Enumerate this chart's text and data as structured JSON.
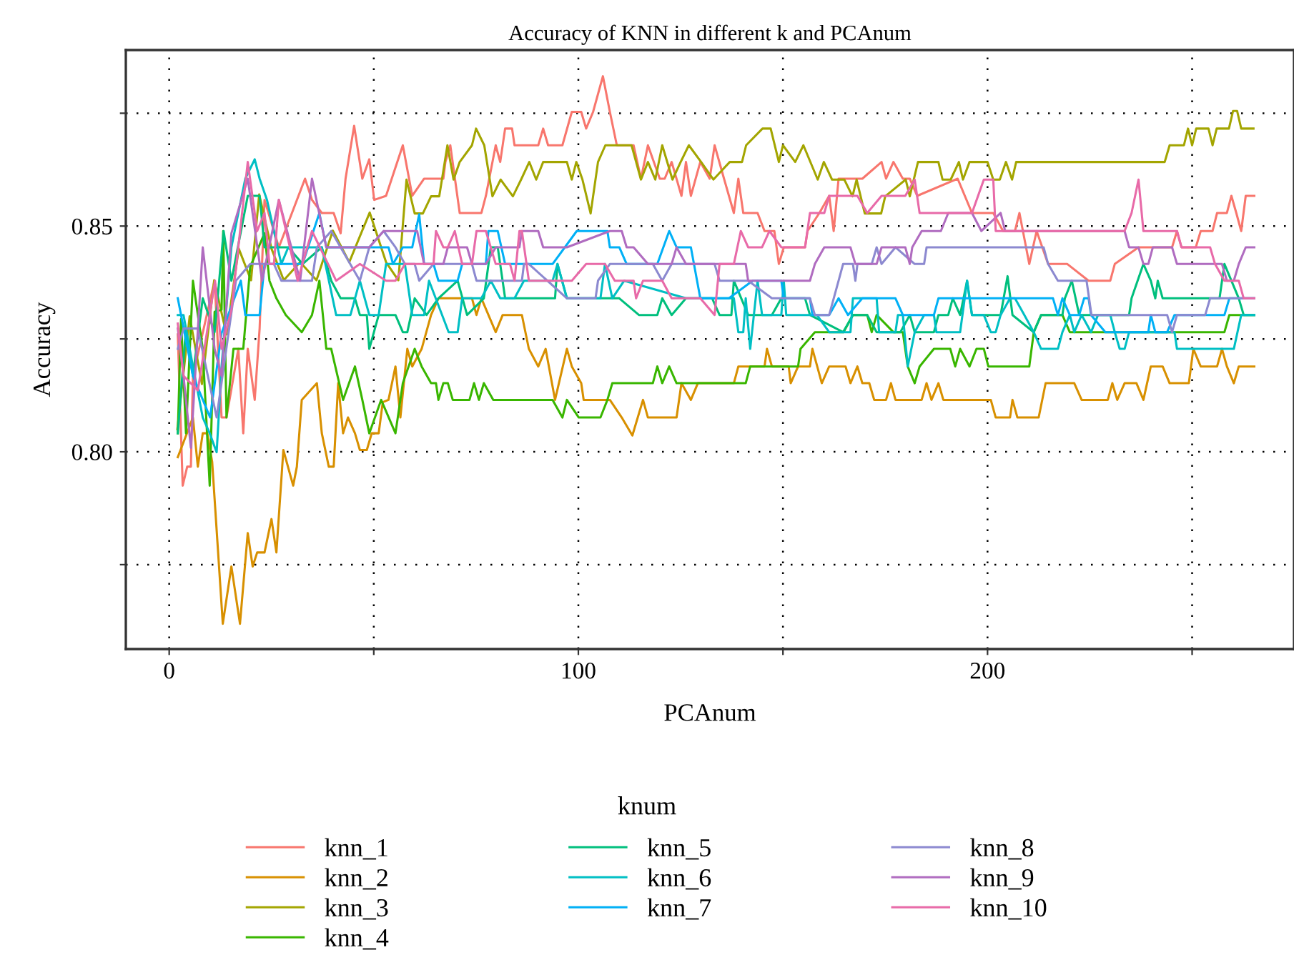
{
  "chart_data": {
    "type": "line",
    "title": "Accuracy of KNN in different k and PCAnum",
    "xlabel": "PCAnum",
    "ylabel": "Accuracy",
    "legend_title": "knum",
    "xlim": [
      -10.6,
      274.9
    ],
    "ylim": [
      0.7563,
      0.889
    ],
    "xticks": [
      0,
      {
        "value": 50,
        "label": null
      },
      100,
      {
        "value": 150,
        "label": null
      },
      200,
      {
        "value": 250,
        "label": null
      }
    ],
    "yticks": [
      {
        "value": 0.775,
        "label": null
      },
      {
        "value": 0.8,
        "label": "0.80"
      },
      {
        "value": 0.825,
        "label": null
      },
      {
        "value": 0.85,
        "label": "0.85"
      },
      {
        "value": 0.875,
        "label": null
      }
    ],
    "grid": true,
    "legend": "bottom",
    "line_style": "solid",
    "series": [
      {
        "name": "knn_1",
        "color": "#f8766d",
        "x": [
          2.1,
          3.3,
          4.4,
          5.3,
          5.8,
          11.1,
          12.8,
          14.0,
          16.9,
          18.1,
          19.2,
          20.9,
          22.1,
          23.3,
          26.8,
          33.2,
          34.9,
          37.3,
          40.2,
          41.9,
          43.1,
          45.2,
          47.2,
          48.9,
          50.1,
          53,
          57.1,
          59.4,
          62.3,
          67,
          67.5,
          68.7,
          71,
          76.3,
          77.4,
          79.8,
          80.9,
          82.1,
          83.8,
          84.4,
          90.2,
          91.4,
          92.6,
          96.1,
          98.4,
          100.7,
          101.9,
          103.6,
          106,
          107.7,
          109.4,
          113.5,
          115.3,
          117,
          119.9,
          121.1,
          122.8,
          125.2,
          126.3,
          127.5,
          129.8,
          132.1,
          133.3,
          135.6,
          138,
          139.1,
          140.3,
          143.8,
          145.5,
          147.9,
          149,
          150.2,
          155.4,
          156,
          158.9,
          161.3,
          162.4,
          163.6,
          169.4,
          174.1,
          175.2,
          177,
          179.3,
          181,
          182.8,
          192.7,
          196.2,
          201.4,
          203.8,
          206.7,
          207.8,
          210.2,
          212,
          214.8,
          219.5,
          224.7,
          230,
          231.1,
          236.9,
          245.1,
          246.3,
          247.4,
          250.9,
          252.1,
          255,
          256.1,
          258.5,
          259.6,
          260.8,
          262,
          263.1,
          265.2
        ],
        "values": [
          0.826,
          0.7925,
          0.7967,
          0.7967,
          0.8168,
          0.8379,
          0.8076,
          0.8076,
          0.8228,
          0.8041,
          0.8228,
          0.8115,
          0.8273,
          0.8558,
          0.8453,
          0.8605,
          0.8558,
          0.8529,
          0.8529,
          0.8484,
          0.8605,
          0.8722,
          0.8605,
          0.8648,
          0.8558,
          0.8567,
          0.8679,
          0.8567,
          0.8605,
          0.8605,
          0.8642,
          0.8679,
          0.8529,
          0.8529,
          0.8567,
          0.8679,
          0.8642,
          0.8716,
          0.8716,
          0.8679,
          0.8679,
          0.8716,
          0.8679,
          0.8679,
          0.8753,
          0.8753,
          0.8716,
          0.8753,
          0.8832,
          0.8753,
          0.8679,
          0.8679,
          0.8605,
          0.8679,
          0.8605,
          0.8605,
          0.8642,
          0.8567,
          0.8642,
          0.8567,
          0.8642,
          0.8605,
          0.8679,
          0.8605,
          0.8529,
          0.8605,
          0.8529,
          0.8529,
          0.8489,
          0.8489,
          0.8416,
          0.8453,
          0.8453,
          0.8489,
          0.8529,
          0.8567,
          0.8489,
          0.8605,
          0.8605,
          0.8642,
          0.8605,
          0.8642,
          0.8605,
          0.8605,
          0.8567,
          0.8605,
          0.8529,
          0.8529,
          0.8489,
          0.8489,
          0.8529,
          0.8416,
          0.8489,
          0.8416,
          0.8416,
          0.8379,
          0.8379,
          0.8416,
          0.8453,
          0.8453,
          0.8489,
          0.8453,
          0.8453,
          0.8489,
          0.8489,
          0.8529,
          0.8529,
          0.8567,
          0.8529,
          0.8489,
          0.8567,
          0.8567
        ]
      },
      {
        "name": "knn_2",
        "color": "#d89000",
        "x": [
          2.1,
          5.8,
          7,
          8.2,
          9.3,
          10.5,
          13.1,
          15.2,
          17.3,
          19.2,
          20.4,
          21.5,
          23.3,
          25,
          26.2,
          27.9,
          30.3,
          31.2,
          32.4,
          36.1,
          37.3,
          39,
          40.2,
          41.3,
          42.5,
          43.7,
          45.4,
          46.6,
          48.3,
          49.5,
          51.2,
          52.2,
          53.6,
          55.3,
          56.5,
          58.2,
          59.4,
          61.7,
          64,
          65.8,
          74,
          75.1,
          76.3,
          79.8,
          81.5,
          86.2,
          87.9,
          90.2,
          92,
          94.3,
          97.2,
          98.4,
          100.7,
          101.3,
          107.7,
          110.6,
          113.2,
          115.8,
          117,
          124,
          125.2,
          127.5,
          129.2,
          138,
          139.1,
          145.5,
          146.1,
          147.3,
          151.4,
          151.9,
          153.7,
          156.6,
          157.2,
          159.5,
          161.3,
          165.3,
          166.5,
          168.2,
          169.4,
          171.1,
          172.3,
          175.2,
          176.4,
          177.5,
          183.9,
          185.1,
          186.3,
          188,
          189.2,
          200.8,
          202,
          205.5,
          206.1,
          207.3,
          212.5,
          214.2,
          221.2,
          223,
          229.4,
          230.5,
          231.7,
          233.5,
          236.4,
          238.1,
          239.9,
          242.8,
          244.5,
          249.2,
          250.3,
          252.1,
          256.1,
          257.3,
          258.5,
          260.2,
          261.4,
          265.2
        ],
        "values": [
          0.7988,
          0.8076,
          0.7967,
          0.8041,
          0.8041,
          0.7978,
          0.7619,
          0.7746,
          0.7619,
          0.782,
          0.7746,
          0.7777,
          0.7777,
          0.7851,
          0.7777,
          0.8004,
          0.7925,
          0.7967,
          0.8115,
          0.8152,
          0.8041,
          0.7967,
          0.7967,
          0.8152,
          0.8041,
          0.8076,
          0.8041,
          0.8004,
          0.8004,
          0.8041,
          0.8041,
          0.811,
          0.8115,
          0.8189,
          0.8076,
          0.8228,
          0.8189,
          0.8228,
          0.8303,
          0.834,
          0.834,
          0.8303,
          0.834,
          0.8265,
          0.8303,
          0.8303,
          0.8228,
          0.8189,
          0.8228,
          0.8115,
          0.8228,
          0.8189,
          0.8152,
          0.8115,
          0.8115,
          0.8076,
          0.8036,
          0.8115,
          0.8076,
          0.8076,
          0.8152,
          0.8115,
          0.8152,
          0.8152,
          0.8189,
          0.8189,
          0.8228,
          0.8189,
          0.8189,
          0.8152,
          0.8189,
          0.8189,
          0.8228,
          0.8152,
          0.8189,
          0.8189,
          0.8152,
          0.8189,
          0.8152,
          0.8152,
          0.8115,
          0.8115,
          0.8152,
          0.8115,
          0.8115,
          0.8152,
          0.8115,
          0.8152,
          0.8115,
          0.8115,
          0.8076,
          0.8076,
          0.8115,
          0.8076,
          0.8076,
          0.8152,
          0.8152,
          0.8115,
          0.8115,
          0.8152,
          0.8115,
          0.8152,
          0.8152,
          0.8115,
          0.8189,
          0.8189,
          0.8152,
          0.8152,
          0.8228,
          0.8189,
          0.8189,
          0.8228,
          0.8189,
          0.8152,
          0.8189,
          0.8189
        ]
      },
      {
        "name": "knn_3",
        "color": "#a3a500",
        "x": [
          2,
          5,
          8,
          11,
          14,
          17,
          20,
          22,
          25,
          28,
          32,
          36,
          40,
          44,
          49,
          53,
          56,
          58,
          60,
          62,
          64,
          66,
          68,
          69.5,
          71,
          74,
          75,
          77,
          79,
          81,
          84,
          86,
          88,
          89.7,
          91.4,
          97.2,
          98.4,
          99.5,
          101,
          103,
          104.8,
          106.6,
          113,
          115.3,
          117,
          118.8,
          120.5,
          123,
          125,
          127,
          130,
          133,
          137,
          140,
          141,
          145,
          147,
          149,
          150,
          153,
          155,
          158.5,
          160,
          162,
          165,
          167,
          168,
          170,
          174,
          175,
          180,
          181,
          183,
          188,
          189,
          191,
          193,
          194,
          195.6,
          200,
          201.4,
          203,
          204.5,
          206,
          207,
          243.3,
          244.5,
          248,
          249,
          250,
          251,
          254,
          255,
          256,
          259,
          260,
          261,
          262,
          265
        ],
        "values": [
          0.805,
          0.83,
          0.815,
          0.838,
          0.826,
          0.845,
          0.838,
          0.857,
          0.845,
          0.838,
          0.842,
          0.838,
          0.849,
          0.842,
          0.853,
          0.842,
          0.838,
          0.8603,
          0.8528,
          0.8528,
          0.8566,
          0.8566,
          0.8679,
          0.8603,
          0.8642,
          0.8679,
          0.8716,
          0.8679,
          0.8566,
          0.8603,
          0.8566,
          0.8603,
          0.8642,
          0.8603,
          0.8642,
          0.8642,
          0.8603,
          0.8642,
          0.8603,
          0.8528,
          0.8642,
          0.8679,
          0.8679,
          0.8603,
          0.8642,
          0.8603,
          0.8679,
          0.8603,
          0.8642,
          0.8679,
          0.8642,
          0.8603,
          0.8642,
          0.8642,
          0.8679,
          0.8716,
          0.8716,
          0.8642,
          0.8679,
          0.8642,
          0.8679,
          0.8603,
          0.8642,
          0.8603,
          0.8603,
          0.8566,
          0.8603,
          0.8528,
          0.8528,
          0.8566,
          0.8603,
          0.8566,
          0.8642,
          0.8642,
          0.8603,
          0.8603,
          0.8642,
          0.8603,
          0.8642,
          0.8642,
          0.8603,
          0.8603,
          0.8642,
          0.8603,
          0.8642,
          0.8642,
          0.8679,
          0.8679,
          0.8716,
          0.8679,
          0.8716,
          0.8716,
          0.8679,
          0.8716,
          0.8716,
          0.8755,
          0.8755,
          0.8716,
          0.8716
        ]
      },
      {
        "name": "knn_4",
        "color": "#39b600",
        "x": [
          2.1,
          2.9,
          4.1,
          5.8,
          8.2,
          9.9,
          11.1,
          12.8,
          13.2,
          14,
          15.7,
          18.1,
          19.8,
          23.3,
          24.5,
          26.2,
          28.5,
          32.4,
          34.9,
          36.7,
          38.4,
          39.6,
          42.5,
          45.4,
          47.2,
          48.9,
          51.8,
          55.3,
          57.1,
          60,
          61.7,
          64,
          65.2,
          65.8,
          67,
          68.1,
          69.3,
          73.4,
          74.5,
          75.7,
          76.9,
          79.2,
          93.7,
          96.1,
          97.2,
          100.1,
          105.4,
          107.1,
          108.3,
          118.2,
          119.3,
          120.5,
          122.2,
          124,
          140.9,
          142,
          153.7,
          154.3,
          157.8,
          164.8,
          167.1,
          170.6,
          171.7,
          172.9,
          177,
          179.3,
          180.5,
          182.2,
          183.4,
          186.9,
          190.9,
          192.1,
          193.3,
          195.6,
          197.3,
          199.1,
          200.2,
          210.2,
          211.3,
          213.1,
          218.3,
          220.1,
          257.9,
          259.1,
          265.2
        ],
        "values": [
          0.8041,
          0.8294,
          0.8041,
          0.8379,
          0.8228,
          0.7925,
          0.831,
          0.8315,
          0.8489,
          0.8076,
          0.8228,
          0.8228,
          0.841,
          0.8484,
          0.8379,
          0.834,
          0.8303,
          0.8265,
          0.8303,
          0.8379,
          0.8228,
          0.8228,
          0.8115,
          0.8189,
          0.8115,
          0.8041,
          0.8115,
          0.8041,
          0.8152,
          0.8228,
          0.8189,
          0.8152,
          0.8152,
          0.8115,
          0.8152,
          0.8152,
          0.8115,
          0.8115,
          0.8152,
          0.8115,
          0.8152,
          0.8115,
          0.8115,
          0.8076,
          0.8115,
          0.8076,
          0.8076,
          0.8115,
          0.8152,
          0.8152,
          0.8189,
          0.8152,
          0.8189,
          0.8152,
          0.8152,
          0.8189,
          0.8189,
          0.8228,
          0.8265,
          0.8265,
          0.8303,
          0.8303,
          0.8265,
          0.8303,
          0.8265,
          0.8265,
          0.8189,
          0.8152,
          0.8189,
          0.8228,
          0.8228,
          0.8189,
          0.8228,
          0.8189,
          0.8228,
          0.8228,
          0.8189,
          0.8189,
          0.8265,
          0.8303,
          0.8303,
          0.8265,
          0.8265,
          0.8303,
          0.8303
        ]
      },
      {
        "name": "knn_5",
        "color": "#00bf7d",
        "x": [
          2.1,
          4.1,
          5.8,
          8.2,
          11.1,
          13.3,
          15.2,
          19.2,
          22.1,
          23.3,
          29.1,
          32.6,
          37.3,
          39.6,
          41.9,
          45.4,
          46.6,
          48.3,
          48.9,
          51.2,
          55.3,
          57.1,
          58.2,
          60,
          62.9,
          65.8,
          70.5,
          72.8,
          76.9,
          78.6,
          80.3,
          82.1,
          94.3,
          94.9,
          97.2,
          103,
          110,
          114.8,
          119.3,
          120.5,
          122.8,
          126.3,
          132.7,
          134.5,
          137.4,
          138,
          141.5,
          147.3,
          149.6,
          155.4,
          156.6,
          164.7,
          167.1,
          170.6,
          172.9,
          178.7,
          181,
          182.2,
          186.9,
          188,
          190.4,
          191.5,
          193.3,
          195,
          196.2,
          203.2,
          204.9,
          206.1,
          211.3,
          213.1,
          218.3,
          218.9,
          220.6,
          222.4,
          234.6,
          235.2,
          238.1,
          239.9,
          241,
          241.6,
          242.8,
          244.5,
          256.7,
          257.9,
          261.4,
          262.6,
          265.2
        ],
        "values": [
          0.8041,
          0.8273,
          0.8168,
          0.834,
          0.8265,
          0.8489,
          0.8379,
          0.8567,
          0.8567,
          0.8453,
          0.8453,
          0.8416,
          0.8453,
          0.8379,
          0.834,
          0.834,
          0.8303,
          0.8303,
          0.8228,
          0.8303,
          0.8303,
          0.8265,
          0.8265,
          0.834,
          0.8303,
          0.834,
          0.8379,
          0.8303,
          0.834,
          0.8453,
          0.8453,
          0.834,
          0.834,
          0.8416,
          0.834,
          0.834,
          0.834,
          0.8303,
          0.8303,
          0.834,
          0.8303,
          0.834,
          0.834,
          0.8303,
          0.8303,
          0.8379,
          0.8303,
          0.8303,
          0.834,
          0.834,
          0.8303,
          0.8265,
          0.8303,
          0.8303,
          0.8265,
          0.8265,
          0.8303,
          0.8265,
          0.8265,
          0.8303,
          0.8303,
          0.834,
          0.8303,
          0.8379,
          0.8303,
          0.8303,
          0.8389,
          0.8303,
          0.8265,
          0.8303,
          0.8303,
          0.834,
          0.8379,
          0.8303,
          0.8303,
          0.834,
          0.8416,
          0.8379,
          0.834,
          0.8379,
          0.834,
          0.834,
          0.834,
          0.8416,
          0.834,
          0.8303,
          0.8303
        ]
      },
      {
        "name": "knn_6",
        "color": "#00bfc4",
        "x": [
          2.1,
          3.5,
          5.8,
          8.2,
          9.9,
          11.6,
          12.8,
          15.2,
          18.6,
          20.9,
          22.1,
          23.9,
          25.6,
          27.4,
          29.1,
          37.3,
          40.8,
          44.3,
          46.6,
          48.9,
          51.2,
          53,
          57.6,
          59.4,
          62.3,
          63.5,
          68.3,
          70.5,
          71.6,
          76.3,
          78.6,
          80.9,
          84.4,
          86.7,
          93.7,
          94.9,
          97.2,
          105.4,
          106.5,
          108.3,
          111.2,
          126.3,
          138,
          139.1,
          140.3,
          140.9,
          142,
          143.8,
          144.9,
          149.6,
          150.2,
          150.8,
          158.3,
          161.3,
          166.5,
          167.1,
          172.9,
          173.5,
          177.5,
          178.1,
          179.3,
          180.5,
          182.2,
          184.5,
          186.9,
          187.5,
          193.3,
          195,
          196.2,
          199.1,
          200.8,
          202,
          203.2,
          205.5,
          206.7,
          209,
          211.3,
          213.1,
          217.2,
          218.3,
          220.1,
          221.2,
          223,
          225.3,
          227,
          230,
          231.1,
          232.3,
          233.5,
          234.6,
          245.7,
          246.3,
          260.2,
          262,
          265.2
        ],
        "values": [
          0.8303,
          0.8303,
          0.8189,
          0.8076,
          0.8041,
          0.7999,
          0.8189,
          0.8453,
          0.8605,
          0.8648,
          0.8605,
          0.8558,
          0.8489,
          0.8416,
          0.8453,
          0.8453,
          0.8303,
          0.8303,
          0.8379,
          0.8303,
          0.8303,
          0.8416,
          0.8416,
          0.8303,
          0.8303,
          0.8379,
          0.8265,
          0.8265,
          0.834,
          0.834,
          0.8379,
          0.834,
          0.834,
          0.8379,
          0.8379,
          0.8416,
          0.834,
          0.834,
          0.8416,
          0.834,
          0.8379,
          0.834,
          0.834,
          0.8265,
          0.8265,
          0.834,
          0.8228,
          0.8379,
          0.8303,
          0.8303,
          0.8379,
          0.8303,
          0.8303,
          0.8265,
          0.8265,
          0.834,
          0.834,
          0.8265,
          0.8265,
          0.8303,
          0.8303,
          0.8189,
          0.8265,
          0.8303,
          0.8303,
          0.8265,
          0.8265,
          0.8379,
          0.8303,
          0.8303,
          0.8265,
          0.8265,
          0.8303,
          0.834,
          0.834,
          0.8303,
          0.8265,
          0.8228,
          0.8228,
          0.8265,
          0.8303,
          0.8265,
          0.8303,
          0.8265,
          0.8303,
          0.8303,
          0.8265,
          0.8228,
          0.8228,
          0.8265,
          0.8265,
          0.8228,
          0.8228,
          0.8303,
          0.8303
        ]
      },
      {
        "name": "knn_7",
        "color": "#00b0f6",
        "x": [
          2.1,
          5.8,
          10,
          12.8,
          17.5,
          18.6,
          22.1,
          23.3,
          32.6,
          36.7,
          38.4,
          53.6,
          54.7,
          57.1,
          59.4,
          61.1,
          62.3,
          64.6,
          65.8,
          70.5,
          71.6,
          77.4,
          78,
          80.3,
          82.1,
          93.7,
          99.6,
          107.1,
          107.7,
          110,
          111.8,
          119.3,
          122.2,
          124,
          127.5,
          129.8,
          136.8,
          142.6,
          149.6,
          150.2,
          156.6,
          157.2,
          161.3,
          163.6,
          165.9,
          169.4,
          177.5,
          179.3,
          186.9,
          188,
          216,
          217.2,
          218.3,
          220.1,
          222.4,
          223.6,
          224.7,
          225.3,
          228.8,
          239.3,
          239.9,
          241,
          243.9,
          245.7,
          257.9,
          259.1,
          265.2
        ],
        "values": [
          0.834,
          0.8168,
          0.8076,
          0.8263,
          0.8379,
          0.8303,
          0.8303,
          0.8416,
          0.8416,
          0.8529,
          0.8453,
          0.8453,
          0.8416,
          0.8453,
          0.8453,
          0.8526,
          0.8416,
          0.8416,
          0.8379,
          0.8379,
          0.8416,
          0.8416,
          0.8489,
          0.8489,
          0.8416,
          0.8416,
          0.8489,
          0.8489,
          0.8453,
          0.8453,
          0.8416,
          0.8416,
          0.8489,
          0.8453,
          0.8453,
          0.834,
          0.834,
          0.8379,
          0.8379,
          0.834,
          0.834,
          0.8303,
          0.8303,
          0.834,
          0.8303,
          0.834,
          0.834,
          0.8303,
          0.8303,
          0.834,
          0.834,
          0.8303,
          0.834,
          0.8303,
          0.8303,
          0.834,
          0.834,
          0.8303,
          0.8265,
          0.8265,
          0.8303,
          0.8265,
          0.8265,
          0.8303,
          0.8303,
          0.834,
          0.834
        ]
      },
      {
        "name": "knn_8",
        "color": "#8c89d0",
        "x": [
          2.1,
          3.5,
          7,
          11.6,
          16.3,
          19.8,
          25.6,
          27.4,
          34.9,
          36.1,
          39.6,
          46.6,
          48.9,
          52.4,
          55.3,
          57.6,
          60,
          61.1,
          64.6,
          74,
          75.1,
          86.2,
          86.7,
          87.9,
          97.2,
          104.2,
          104.8,
          107.7,
          118.2,
          120.5,
          122.8,
          133.3,
          134.5,
          141.5,
          147.3,
          156.6,
          157.8,
          161.3,
          163.6,
          164.7,
          167.1,
          167.7,
          168.2,
          171.7,
          172.9,
          174.1,
          177.5,
          182.2,
          184.5,
          185.1,
          213.7,
          214.8,
          217.2,
          224.2,
          225.4,
          243.9,
          245.1,
          246.3,
          253.2,
          254.4,
          265.2
        ],
        "values": [
          0.8228,
          0.8273,
          0.8273,
          0.8076,
          0.8379,
          0.8416,
          0.8416,
          0.8379,
          0.8379,
          0.8453,
          0.8489,
          0.8379,
          0.8453,
          0.8489,
          0.8453,
          0.8416,
          0.8416,
          0.8379,
          0.8416,
          0.8416,
          0.8379,
          0.8379,
          0.8416,
          0.8416,
          0.834,
          0.834,
          0.8379,
          0.8416,
          0.8416,
          0.8379,
          0.8416,
          0.8416,
          0.8379,
          0.8379,
          0.834,
          0.834,
          0.8303,
          0.8303,
          0.8379,
          0.8416,
          0.8416,
          0.8379,
          0.8416,
          0.8416,
          0.8453,
          0.8416,
          0.8453,
          0.8416,
          0.8416,
          0.8453,
          0.8453,
          0.8416,
          0.8379,
          0.8379,
          0.8303,
          0.8303,
          0.8265,
          0.8303,
          0.8303,
          0.834,
          0.834
        ]
      },
      {
        "name": "knn_9",
        "color": "#b06cc0",
        "x": [
          2.1,
          3.5,
          5.3,
          8.2,
          11.1,
          12.8,
          15.2,
          19.2,
          22.7,
          26.8,
          32,
          34.9,
          38.4,
          45.4,
          48.9,
          52.4,
          53,
          60.6,
          62.3,
          67,
          68.1,
          72.8,
          74,
          77.4,
          79.8,
          85.6,
          86.2,
          90.2,
          91.4,
          97.2,
          107.7,
          110.6,
          111.8,
          113.5,
          117,
          122.8,
          124,
          126.3,
          140.9,
          141.5,
          156.6,
          157.8,
          160.1,
          166.5,
          167.7,
          172.9,
          174.1,
          179.9,
          181,
          181.6,
          183.9,
          188.6,
          190.4,
          196.2,
          198.5,
          203.2,
          204.3,
          233.5,
          234.6,
          236.9,
          238.1,
          239.3,
          240.4,
          245.1,
          246.3,
          257.3,
          258.5,
          260.2,
          261.4,
          263.1,
          265.2
        ],
        "values": [
          0.8273,
          0.8168,
          0.8009,
          0.8453,
          0.8228,
          0.8168,
          0.8484,
          0.8605,
          0.8379,
          0.8558,
          0.8379,
          0.8605,
          0.8453,
          0.8453,
          0.8453,
          0.8489,
          0.8489,
          0.8489,
          0.8416,
          0.8416,
          0.8453,
          0.8453,
          0.8416,
          0.8416,
          0.8453,
          0.8453,
          0.8489,
          0.8489,
          0.8453,
          0.8453,
          0.8489,
          0.8489,
          0.8453,
          0.8453,
          0.8416,
          0.8416,
          0.8453,
          0.8416,
          0.8416,
          0.8379,
          0.8379,
          0.8416,
          0.8453,
          0.8453,
          0.8416,
          0.8416,
          0.8453,
          0.8453,
          0.8416,
          0.8453,
          0.8489,
          0.8489,
          0.8529,
          0.8529,
          0.8489,
          0.8529,
          0.8489,
          0.8489,
          0.8453,
          0.8453,
          0.8416,
          0.8416,
          0.8453,
          0.8453,
          0.8416,
          0.8416,
          0.8379,
          0.8379,
          0.8416,
          0.8453,
          0.8453
        ]
      },
      {
        "name": "knn_10",
        "color": "#e86aa8",
        "x": [
          2.1,
          3.5,
          7,
          11.2,
          12.8,
          15.2,
          19.2,
          21.5,
          23.3,
          24.5,
          25.6,
          26.8,
          31.4,
          34.9,
          40.8,
          46.6,
          53,
          55.3,
          57.6,
          64.6,
          65.2,
          67,
          68.1,
          69.8,
          71.6,
          74,
          75.1,
          77.4,
          79.8,
          83.3,
          84.4,
          85.6,
          86.2,
          87.9,
          98.4,
          101.9,
          106.5,
          108.9,
          113.5,
          114.1,
          115.8,
          120.5,
          122.8,
          129.8,
          133.3,
          134.5,
          138,
          139.7,
          141.5,
          144.9,
          146.7,
          149.6,
          155.4,
          156.6,
          160.1,
          161.3,
          168.2,
          170.6,
          174.1,
          179.9,
          182.2,
          183.4,
          196.2,
          199.1,
          201.4,
          202,
          233.5,
          235.2,
          236.9,
          238.1,
          246.3,
          247.4,
          254.4,
          255.6,
          257.9,
          261.4,
          262.6,
          265.2
        ],
        "values": [
          0.8284,
          0.8168,
          0.8136,
          0.8379,
          0.8228,
          0.8315,
          0.8642,
          0.8489,
          0.8529,
          0.8416,
          0.8416,
          0.8558,
          0.8379,
          0.8489,
          0.8379,
          0.8416,
          0.8379,
          0.8379,
          0.8416,
          0.8416,
          0.8489,
          0.8453,
          0.8453,
          0.8489,
          0.8416,
          0.8416,
          0.8489,
          0.8489,
          0.8416,
          0.8416,
          0.8379,
          0.8489,
          0.8489,
          0.8379,
          0.8379,
          0.8416,
          0.8416,
          0.8379,
          0.8379,
          0.834,
          0.8379,
          0.8379,
          0.834,
          0.834,
          0.8303,
          0.8416,
          0.8416,
          0.8489,
          0.8453,
          0.8453,
          0.8489,
          0.8453,
          0.8453,
          0.8529,
          0.8529,
          0.8567,
          0.8567,
          0.8529,
          0.8567,
          0.8567,
          0.8603,
          0.8529,
          0.8529,
          0.8603,
          0.8603,
          0.8489,
          0.8489,
          0.8529,
          0.8603,
          0.8489,
          0.8489,
          0.8453,
          0.8453,
          0.8416,
          0.8379,
          0.8379,
          0.834,
          0.834
        ]
      }
    ]
  }
}
